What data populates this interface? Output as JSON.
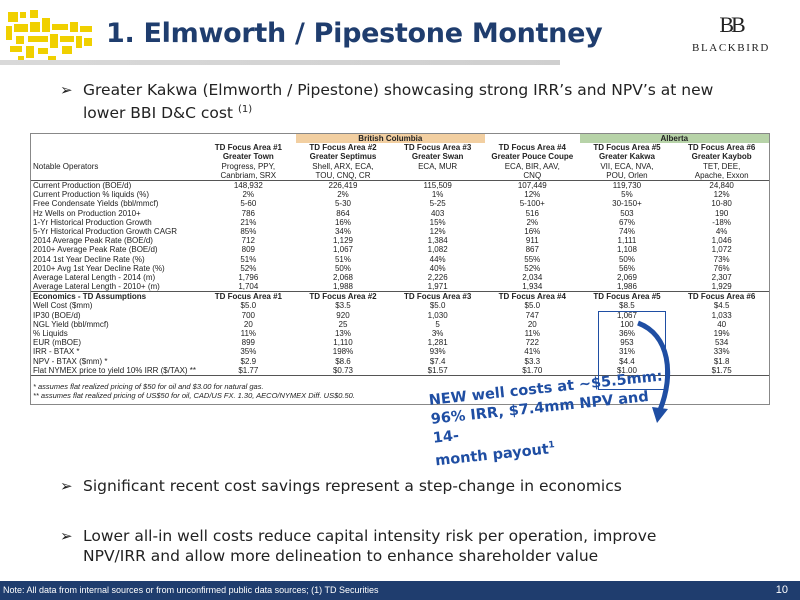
{
  "slide": {
    "title": "1. Elmworth / Pipestone Montney",
    "brand_mark": "BB",
    "brand_name": "BLACKBIRD",
    "page_number": "10",
    "footer_note": "Note: All data from internal sources or from unconfirmed public data sources; (1) TD Securities"
  },
  "bullets": {
    "b1_text": "Greater Kakwa (Elmworth / Pipestone) showcasing strong IRR’s and NPV’s at new lower BBI D&C cost ",
    "b1_sup": "(1)",
    "b2_text": "Significant recent cost savings represent a step-change in economics",
    "b3_text": "Lower all-in well costs reduce capital intensity risk per operation, improve NPV/IRR and allow more delineation to enhance shareholder value"
  },
  "table": {
    "province_bc": "British Columbia",
    "province_ab": "Alberta",
    "focus_areas": [
      "TD Focus Area #1",
      "TD Focus Area #2",
      "TD Focus Area #3",
      "TD Focus Area #4",
      "TD Focus Area #5",
      "TD Focus Area #6"
    ],
    "area_names": [
      "Greater Town",
      "Greater Septimus",
      "Greater Swan",
      "Greater Pouce Coupe",
      "Greater Kakwa",
      "Greater Kaybob"
    ],
    "operators_label": "Notable Operators",
    "operators_line1": [
      "Progress, PPY,",
      "Shell, ARX, ECA,",
      "ECA, MUR",
      "ECA, BIR, AAV,",
      "VII, ECA, NVA,",
      "TET, DEE,"
    ],
    "operators_line2": [
      "Canbriam, SRX",
      "TOU, CNQ, CR",
      "",
      "CNQ",
      "POU, Orlen",
      "Apache, Exxon"
    ],
    "rows": [
      {
        "label": "Current Production (BOE/d)",
        "v": [
          "148,932",
          "226,419",
          "115,509",
          "107,449",
          "119,730",
          "24,840"
        ]
      },
      {
        "label": "Current Production % liquids (%)",
        "v": [
          "2%",
          "2%",
          "1%",
          "12%",
          "5%",
          "12%"
        ]
      },
      {
        "label": "Free Condensate Yields (bbl/mmcf)",
        "v": [
          "5-60",
          "5-30",
          "5-25",
          "5-100+",
          "30-150+",
          "10-80"
        ]
      },
      {
        "label": "Hz Wells on Production 2010+",
        "v": [
          "786",
          "864",
          "403",
          "516",
          "503",
          "190"
        ]
      },
      {
        "label": "1-Yr Historical Production Growth",
        "v": [
          "21%",
          "16%",
          "15%",
          "2%",
          "67%",
          "-18%"
        ]
      },
      {
        "label": "5-Yr Historical Production Growth CAGR",
        "v": [
          "85%",
          "34%",
          "12%",
          "16%",
          "74%",
          "4%"
        ]
      },
      {
        "label": "2014 Average Peak Rate (BOE/d)",
        "v": [
          "712",
          "1,129",
          "1,384",
          "911",
          "1,111",
          "1,046"
        ]
      },
      {
        "label": "2010+ Average Peak Rate (BOE/d)",
        "v": [
          "809",
          "1,067",
          "1,082",
          "867",
          "1,108",
          "1,072"
        ]
      },
      {
        "label": "2014 1st Year Decline Rate (%)",
        "v": [
          "51%",
          "51%",
          "44%",
          "55%",
          "50%",
          "73%"
        ]
      },
      {
        "label": "2010+ Avg 1st Year Decline Rate (%)",
        "v": [
          "52%",
          "50%",
          "40%",
          "52%",
          "56%",
          "76%"
        ]
      },
      {
        "label": "Average Lateral Length - 2014 (m)",
        "v": [
          "1,796",
          "2,068",
          "2,226",
          "2,034",
          "2,069",
          "2,307"
        ]
      },
      {
        "label": "Average Lateral Length - 2010+ (m)",
        "v": [
          "1,704",
          "1,988",
          "1,971",
          "1,934",
          "1,986",
          "1,929"
        ]
      }
    ],
    "econ_label": "Economics - TD Assumptions",
    "econ_rows": [
      {
        "label": "Well Cost ($mm)",
        "v": [
          "$5.0",
          "$3.5",
          "$5.0",
          "$5.0",
          "$8.5",
          "$4.5"
        ]
      },
      {
        "label": "IP30 (BOE/d)",
        "v": [
          "700",
          "920",
          "1,030",
          "747",
          "1,067",
          "1,033"
        ]
      },
      {
        "label": "NGL Yield (bbl/mmcf)",
        "v": [
          "20",
          "25",
          "5",
          "20",
          "100",
          "40"
        ]
      },
      {
        "label": "% Liquids",
        "v": [
          "11%",
          "13%",
          "3%",
          "11%",
          "36%",
          "19%"
        ]
      },
      {
        "label": "EUR (mBOE)",
        "v": [
          "899",
          "1,110",
          "1,281",
          "722",
          "953",
          "534"
        ]
      },
      {
        "label": "IRR - BTAX *",
        "v": [
          "35%",
          "198%",
          "93%",
          "41%",
          "31%",
          "33%"
        ]
      },
      {
        "label": "NPV - BTAX ($mm) *",
        "v": [
          "$2.9",
          "$8.6",
          "$7.4",
          "$3.3",
          "$4.4",
          "$1.8"
        ]
      },
      {
        "label": "Flat NYMEX price to yield 10% IRR ($/TAX) **",
        "v": [
          "$1.77",
          "$0.73",
          "$1.57",
          "$1.70",
          "$1.00",
          "$1.75"
        ]
      }
    ],
    "foot1": "* assumes flat realized pricing of $50 for oil and $3.00 for natural gas.",
    "foot2": "** assumes flat realized pricing of US$50 for oil, CAD/US FX. 1.30, AECO/NYMEX Diff. US$0.50."
  },
  "callout": {
    "line1": "NEW well costs at ~$5.5mm:",
    "line2": "96% IRR, $7.4mm NPV and 14-",
    "line3": "month payout",
    "sup": "1"
  },
  "colors": {
    "title_blue": "#1f3d6e",
    "callout_blue": "#1f4ea3",
    "bc_orange": "#f2cfa1",
    "ab_green": "#b7d3a8",
    "logo_yellow": "#f5d800"
  }
}
